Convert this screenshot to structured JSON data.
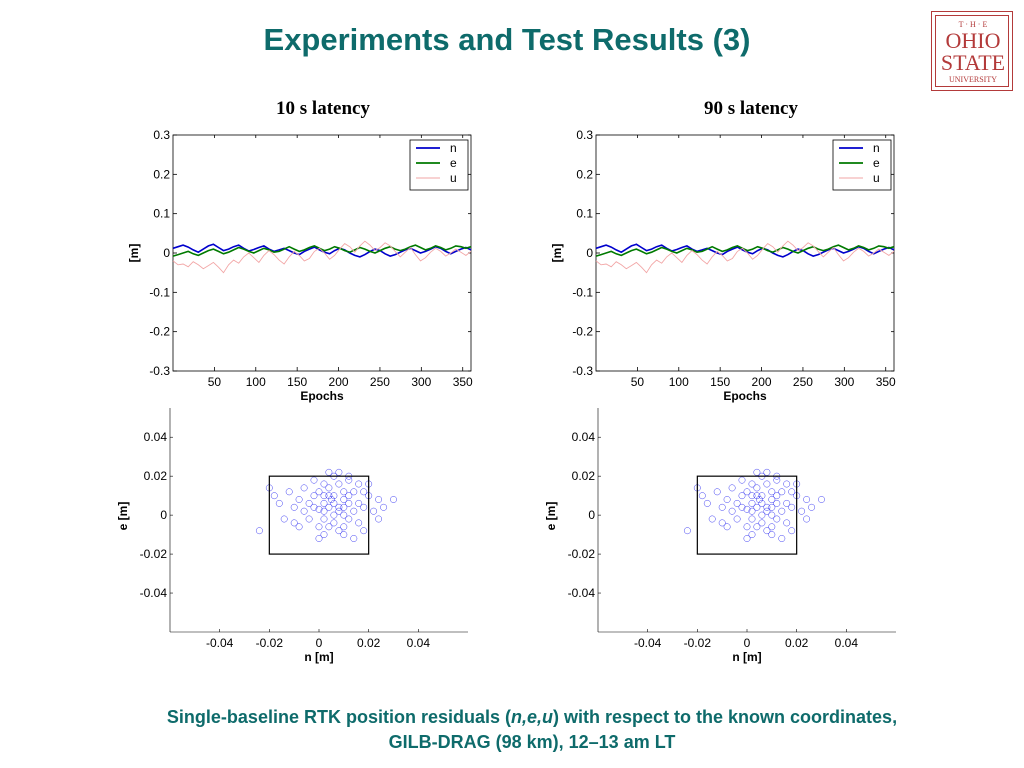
{
  "slide": {
    "title": "Experiments and Test Results (3)",
    "caption_line1_pre": "Single-baseline RTK position residuals (",
    "caption_n": "n",
    "caption_comma1": ",",
    "caption_e": "e",
    "caption_comma2": ",",
    "caption_u": "u",
    "caption_line1_post": ") with respect to the known coordinates,",
    "caption_line2": "GILB-DRAG (98 km), 12–13 am LT",
    "title_color": "#0e6b6b"
  },
  "logo": {
    "line1": "T · H · E",
    "line2": "OHIO",
    "line3": "STATE",
    "line4": "UNIVERSITY",
    "color": "#b33a3a"
  },
  "panels": [
    {
      "title": "10 s latency"
    },
    {
      "title": "90 s latency"
    }
  ],
  "chart_data": [
    {
      "type": "line",
      "title": "10 s latency",
      "xlabel": "Epochs",
      "ylabel": "[m]",
      "xlim": [
        0,
        360
      ],
      "ylim": [
        -0.3,
        0.3
      ],
      "xticks": [
        50,
        100,
        150,
        200,
        250,
        300,
        350
      ],
      "yticks": [
        0.3,
        0.2,
        0.1,
        0,
        -0.1,
        -0.2,
        -0.3
      ],
      "ytick_labels": [
        "0.3",
        "0.2",
        "0.1",
        "0",
        "-0.1",
        "-0.2",
        "-0.3"
      ],
      "legend": [
        "n",
        "e",
        "u"
      ],
      "legend_position": "top-right",
      "series": [
        {
          "name": "n",
          "color": "#0000cc",
          "values": [
            0.012,
            0.016,
            0.02,
            0.015,
            0.008,
            0.002,
            0.01,
            0.018,
            0.022,
            0.014,
            0.006,
            0.01,
            0.016,
            0.02,
            0.012,
            0.005,
            0.009,
            0.014,
            0.018,
            0.01,
            0.004,
            0.008,
            0.012,
            0.006,
            0.0,
            -0.004,
            0.004,
            0.01,
            0.015,
            0.008,
            0.002,
            -0.002,
            0.006,
            0.012,
            0.008,
            0.0,
            -0.006,
            -0.01,
            -0.004,
            0.004,
            0.01,
            0.006,
            -0.002,
            -0.008,
            -0.004,
            0.002,
            0.008,
            0.012,
            0.006,
            0.0,
            0.004,
            0.01,
            0.016,
            0.012,
            0.004,
            -0.002,
            0.004,
            0.01,
            0.014,
            0.008
          ]
        },
        {
          "name": "e",
          "color": "#007a00",
          "values": [
            -0.008,
            -0.004,
            0.0,
            0.004,
            -0.002,
            -0.006,
            0.0,
            0.006,
            0.01,
            0.004,
            -0.002,
            0.002,
            0.008,
            0.014,
            0.01,
            0.004,
            0.0,
            0.006,
            0.012,
            0.008,
            0.002,
            0.004,
            0.01,
            0.016,
            0.01,
            0.004,
            0.008,
            0.014,
            0.018,
            0.012,
            0.006,
            0.01,
            0.016,
            0.012,
            0.006,
            0.002,
            0.008,
            0.014,
            0.01,
            0.004,
            0.0,
            0.006,
            0.012,
            0.016,
            0.01,
            0.006,
            0.01,
            0.016,
            0.02,
            0.014,
            0.008,
            0.012,
            0.018,
            0.014,
            0.008,
            0.012,
            0.018,
            0.016,
            0.012,
            0.016
          ]
        },
        {
          "name": "u",
          "color": "#f2a6a6",
          "values": [
            -0.02,
            -0.03,
            -0.028,
            -0.035,
            -0.022,
            -0.03,
            -0.04,
            -0.032,
            -0.024,
            -0.036,
            -0.05,
            -0.03,
            -0.018,
            -0.026,
            -0.01,
            0.0,
            -0.012,
            -0.024,
            -0.006,
            0.006,
            -0.004,
            -0.018,
            -0.028,
            -0.01,
            0.004,
            -0.006,
            -0.02,
            -0.014,
            0.004,
            0.012,
            0.0,
            -0.016,
            -0.006,
            0.01,
            0.024,
            0.016,
            0.002,
            0.018,
            0.03,
            0.02,
            0.006,
            0.014,
            0.026,
            0.018,
            0.004,
            -0.01,
            0.002,
            0.014,
            -0.004,
            -0.02,
            -0.012,
            0.002,
            0.012,
            0.004,
            -0.008,
            0.0,
            0.01,
            0.002,
            -0.006,
            0.004
          ]
        }
      ]
    },
    {
      "type": "line",
      "title": "90 s latency",
      "xlabel": "Epochs",
      "ylabel": "[m]",
      "xlim": [
        0,
        360
      ],
      "ylim": [
        -0.3,
        0.3
      ],
      "xticks": [
        50,
        100,
        150,
        200,
        250,
        300,
        350
      ],
      "yticks": [
        0.3,
        0.2,
        0.1,
        0,
        -0.1,
        -0.2,
        -0.3
      ],
      "ytick_labels": [
        "0.3",
        "0.2",
        "0.1",
        "0",
        "-0.1",
        "-0.2",
        "-0.3"
      ],
      "legend": [
        "n",
        "e",
        "u"
      ],
      "legend_position": "top-right",
      "series": [
        {
          "name": "n",
          "color": "#0000cc",
          "values": [
            0.012,
            0.016,
            0.02,
            0.015,
            0.008,
            0.002,
            0.01,
            0.018,
            0.022,
            0.014,
            0.006,
            0.01,
            0.016,
            0.02,
            0.012,
            0.005,
            0.009,
            0.014,
            0.018,
            0.01,
            0.004,
            0.008,
            0.012,
            0.006,
            0.0,
            -0.004,
            0.004,
            0.01,
            0.015,
            0.008,
            0.002,
            -0.002,
            0.006,
            0.012,
            0.008,
            0.0,
            -0.006,
            -0.01,
            -0.004,
            0.004,
            0.01,
            0.006,
            -0.002,
            -0.008,
            -0.004,
            0.002,
            0.008,
            0.012,
            0.006,
            0.0,
            0.004,
            0.01,
            0.016,
            0.012,
            0.004,
            -0.002,
            0.004,
            0.01,
            0.014,
            0.008
          ]
        },
        {
          "name": "e",
          "color": "#007a00",
          "values": [
            -0.008,
            -0.004,
            0.0,
            0.004,
            -0.002,
            -0.006,
            0.0,
            0.006,
            0.01,
            0.004,
            -0.002,
            0.002,
            0.008,
            0.014,
            0.01,
            0.004,
            0.0,
            0.006,
            0.012,
            0.008,
            0.002,
            0.004,
            0.01,
            0.016,
            0.01,
            0.004,
            0.008,
            0.014,
            0.018,
            0.012,
            0.006,
            0.01,
            0.016,
            0.012,
            0.006,
            0.002,
            0.008,
            0.014,
            0.01,
            0.004,
            0.0,
            0.006,
            0.012,
            0.016,
            0.01,
            0.006,
            0.01,
            0.016,
            0.02,
            0.014,
            0.008,
            0.012,
            0.018,
            0.014,
            0.008,
            0.012,
            0.018,
            0.016,
            0.012,
            0.016
          ]
        },
        {
          "name": "u",
          "color": "#f2a6a6",
          "values": [
            -0.02,
            -0.03,
            -0.028,
            -0.035,
            -0.022,
            -0.03,
            -0.04,
            -0.032,
            -0.024,
            -0.036,
            -0.05,
            -0.03,
            -0.018,
            -0.026,
            -0.01,
            0.0,
            -0.012,
            -0.024,
            -0.006,
            0.006,
            -0.004,
            -0.018,
            -0.028,
            -0.01,
            0.004,
            -0.006,
            -0.02,
            -0.014,
            0.004,
            0.012,
            0.0,
            -0.016,
            -0.006,
            0.01,
            0.024,
            0.016,
            0.002,
            0.018,
            0.03,
            0.02,
            0.006,
            0.014,
            0.026,
            0.018,
            0.004,
            -0.01,
            0.002,
            0.014,
            -0.004,
            -0.02,
            -0.012,
            0.002,
            0.012,
            0.004,
            -0.008,
            0.0,
            0.01,
            0.002,
            -0.006,
            0.004
          ]
        }
      ]
    },
    {
      "type": "scatter",
      "xlabel": "n [m]",
      "ylabel": "e [m]",
      "xlim": [
        -0.06,
        0.06
      ],
      "ylim": [
        -0.06,
        0.055
      ],
      "xticks": [
        -0.04,
        -0.02,
        0,
        0.02,
        0.04
      ],
      "xtick_labels": [
        "-0.04",
        "-0.02",
        "0",
        "0.02",
        "0.04"
      ],
      "yticks": [
        0.04,
        0.02,
        0,
        -0.02,
        -0.04
      ],
      "ytick_labels": [
        "0.04",
        "0.02",
        "0",
        "-0.02",
        "-0.04"
      ],
      "marker_color": "#0000ee",
      "box": {
        "n": [
          -0.02,
          0.02
        ],
        "e": [
          -0.02,
          0.02
        ]
      },
      "points": [
        [
          0.0,
          0.003
        ],
        [
          0.005,
          0.008
        ],
        [
          0.01,
          0.012
        ],
        [
          0.002,
          -0.002
        ],
        [
          -0.004,
          0.006
        ],
        [
          0.008,
          0.004
        ],
        [
          0.012,
          0.01
        ],
        [
          0.014,
          0.002
        ],
        [
          0.006,
          -0.004
        ],
        [
          -0.002,
          0.01
        ],
        [
          0.004,
          0.014
        ],
        [
          0.01,
          -0.006
        ],
        [
          0.016,
          0.006
        ],
        [
          -0.006,
          0.002
        ],
        [
          0.0,
          0.012
        ],
        [
          0.008,
          0.016
        ],
        [
          0.012,
          -0.002
        ],
        [
          0.002,
          0.006
        ],
        [
          -0.008,
          0.008
        ],
        [
          0.018,
          0.004
        ],
        [
          0.004,
          -0.006
        ],
        [
          0.006,
          0.01
        ],
        [
          -0.01,
          0.004
        ],
        [
          0.014,
          0.012
        ],
        [
          0.01,
          0.0
        ],
        [
          0.002,
          0.016
        ],
        [
          -0.004,
          -0.002
        ],
        [
          0.016,
          -0.004
        ],
        [
          0.008,
          -0.008
        ],
        [
          0.0,
          -0.006
        ],
        [
          0.02,
          0.01
        ],
        [
          0.012,
          0.018
        ],
        [
          -0.012,
          0.012
        ],
        [
          0.006,
          0.02
        ],
        [
          0.018,
          -0.008
        ],
        [
          -0.016,
          0.006
        ],
        [
          0.022,
          0.002
        ],
        [
          0.01,
          -0.01
        ],
        [
          -0.006,
          0.014
        ],
        [
          0.004,
          0.022
        ],
        [
          0.024,
          0.008
        ],
        [
          -0.014,
          -0.002
        ],
        [
          0.0,
          -0.012
        ],
        [
          0.014,
          -0.012
        ],
        [
          -0.018,
          0.01
        ],
        [
          0.026,
          0.004
        ],
        [
          0.008,
          0.022
        ],
        [
          -0.008,
          -0.006
        ],
        [
          0.016,
          0.016
        ],
        [
          0.002,
          0.002
        ],
        [
          0.006,
          0.006
        ],
        [
          0.01,
          0.008
        ],
        [
          0.004,
          0.004
        ],
        [
          -0.002,
          0.004
        ],
        [
          0.008,
          0.002
        ],
        [
          0.012,
          0.006
        ],
        [
          0.006,
          0.0
        ],
        [
          0.002,
          0.01
        ],
        [
          0.01,
          0.004
        ],
        [
          0.004,
          0.01
        ],
        [
          -0.024,
          -0.008
        ],
        [
          0.03,
          0.008
        ],
        [
          0.02,
          0.016
        ],
        [
          -0.02,
          0.014
        ],
        [
          0.012,
          0.02
        ],
        [
          0.018,
          0.012
        ],
        [
          -0.01,
          -0.004
        ],
        [
          0.002,
          -0.01
        ],
        [
          0.024,
          -0.002
        ],
        [
          -0.002,
          0.018
        ]
      ]
    },
    {
      "type": "scatter",
      "xlabel": "n [m]",
      "ylabel": "e [m]",
      "xlim": [
        -0.06,
        0.06
      ],
      "ylim": [
        -0.06,
        0.055
      ],
      "xticks": [
        -0.04,
        -0.02,
        0,
        0.02,
        0.04
      ],
      "xtick_labels": [
        "-0.04",
        "-0.02",
        "0",
        "0.02",
        "0.04"
      ],
      "yticks": [
        0.04,
        0.02,
        0,
        -0.02,
        -0.04
      ],
      "ytick_labels": [
        "0.04",
        "0.02",
        "0",
        "-0.02",
        "-0.04"
      ],
      "marker_color": "#0000ee",
      "box": {
        "n": [
          -0.02,
          0.02
        ],
        "e": [
          -0.02,
          0.02
        ]
      },
      "points": [
        [
          0.0,
          0.003
        ],
        [
          0.005,
          0.008
        ],
        [
          0.01,
          0.012
        ],
        [
          0.002,
          -0.002
        ],
        [
          -0.004,
          0.006
        ],
        [
          0.008,
          0.004
        ],
        [
          0.012,
          0.01
        ],
        [
          0.014,
          0.002
        ],
        [
          0.006,
          -0.004
        ],
        [
          -0.002,
          0.01
        ],
        [
          0.004,
          0.014
        ],
        [
          0.01,
          -0.006
        ],
        [
          0.016,
          0.006
        ],
        [
          -0.006,
          0.002
        ],
        [
          0.0,
          0.012
        ],
        [
          0.008,
          0.016
        ],
        [
          0.012,
          -0.002
        ],
        [
          0.002,
          0.006
        ],
        [
          -0.008,
          0.008
        ],
        [
          0.018,
          0.004
        ],
        [
          0.004,
          -0.006
        ],
        [
          0.006,
          0.01
        ],
        [
          -0.01,
          0.004
        ],
        [
          0.014,
          0.012
        ],
        [
          0.01,
          0.0
        ],
        [
          0.002,
          0.016
        ],
        [
          -0.004,
          -0.002
        ],
        [
          0.016,
          -0.004
        ],
        [
          0.008,
          -0.008
        ],
        [
          0.0,
          -0.006
        ],
        [
          0.02,
          0.01
        ],
        [
          0.012,
          0.018
        ],
        [
          -0.012,
          0.012
        ],
        [
          0.006,
          0.02
        ],
        [
          0.018,
          -0.008
        ],
        [
          -0.016,
          0.006
        ],
        [
          0.022,
          0.002
        ],
        [
          0.01,
          -0.01
        ],
        [
          -0.006,
          0.014
        ],
        [
          0.004,
          0.022
        ],
        [
          0.024,
          0.008
        ],
        [
          -0.014,
          -0.002
        ],
        [
          0.0,
          -0.012
        ],
        [
          0.014,
          -0.012
        ],
        [
          -0.018,
          0.01
        ],
        [
          0.026,
          0.004
        ],
        [
          0.008,
          0.022
        ],
        [
          -0.008,
          -0.006
        ],
        [
          0.016,
          0.016
        ],
        [
          0.002,
          0.002
        ],
        [
          0.006,
          0.006
        ],
        [
          0.01,
          0.008
        ],
        [
          0.004,
          0.004
        ],
        [
          -0.002,
          0.004
        ],
        [
          0.008,
          0.002
        ],
        [
          0.012,
          0.006
        ],
        [
          0.006,
          0.0
        ],
        [
          0.002,
          0.01
        ],
        [
          0.01,
          0.004
        ],
        [
          0.004,
          0.01
        ],
        [
          -0.024,
          -0.008
        ],
        [
          0.03,
          0.008
        ],
        [
          0.02,
          0.016
        ],
        [
          -0.02,
          0.014
        ],
        [
          0.012,
          0.02
        ],
        [
          0.018,
          0.012
        ],
        [
          -0.01,
          -0.004
        ],
        [
          0.002,
          -0.01
        ],
        [
          0.024,
          -0.002
        ],
        [
          -0.002,
          0.018
        ]
      ]
    }
  ]
}
